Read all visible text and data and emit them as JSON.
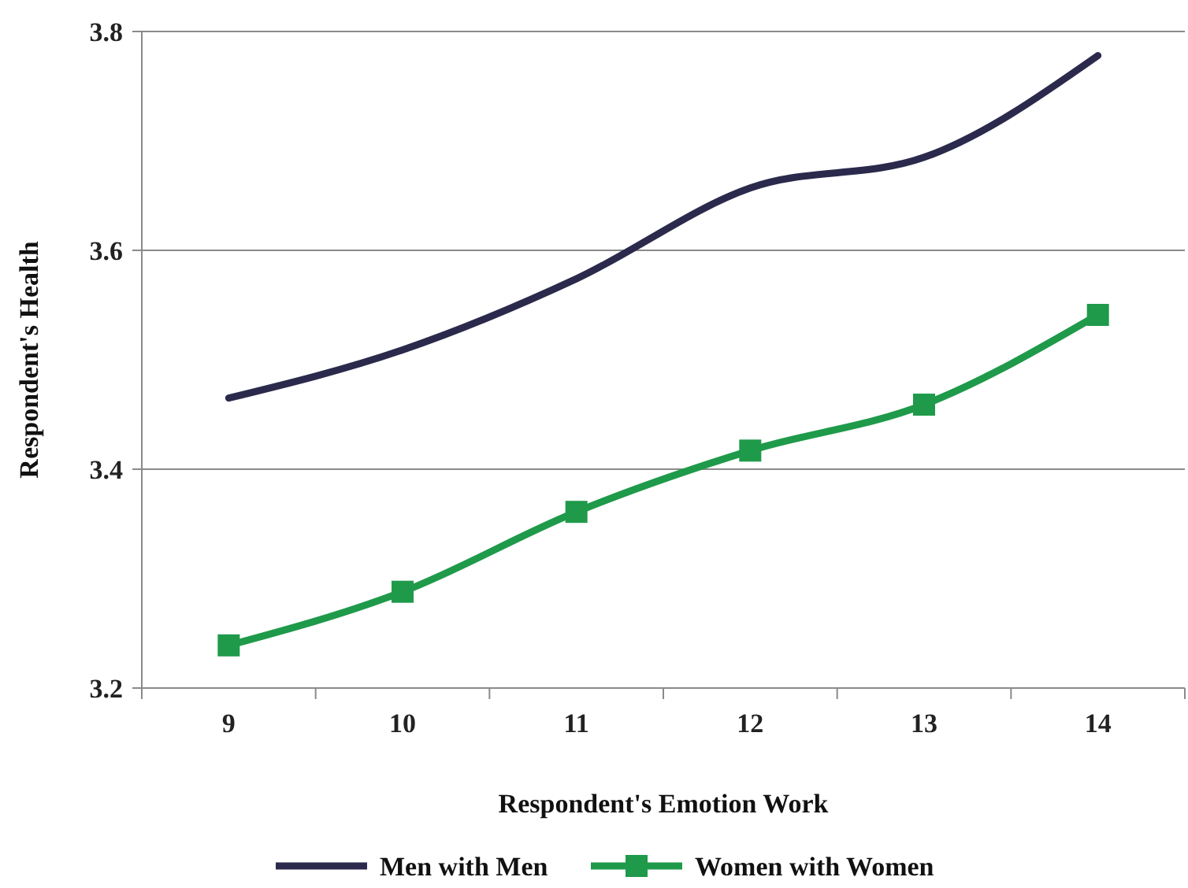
{
  "chart_data": {
    "type": "line",
    "xlabel": "Respondent's Emotion Work",
    "ylabel": "Respondent's Health",
    "categories": [
      "9",
      "10",
      "11",
      "12",
      "13",
      "14"
    ],
    "series": [
      {
        "name": "Men with Men",
        "color": "#2b2a4c",
        "marker": "none",
        "values": [
          3.465,
          3.509,
          3.574,
          3.657,
          3.685,
          3.778
        ]
      },
      {
        "name": "Women with Women",
        "color": "#1f9a4a",
        "marker": "square",
        "values": [
          3.239,
          3.288,
          3.361,
          3.417,
          3.459,
          3.541
        ]
      }
    ],
    "ylim": [
      3.2,
      3.8
    ],
    "yticks": [
      3.2,
      3.4,
      3.6,
      3.8
    ],
    "grid": "y",
    "legend": "bottom"
  }
}
